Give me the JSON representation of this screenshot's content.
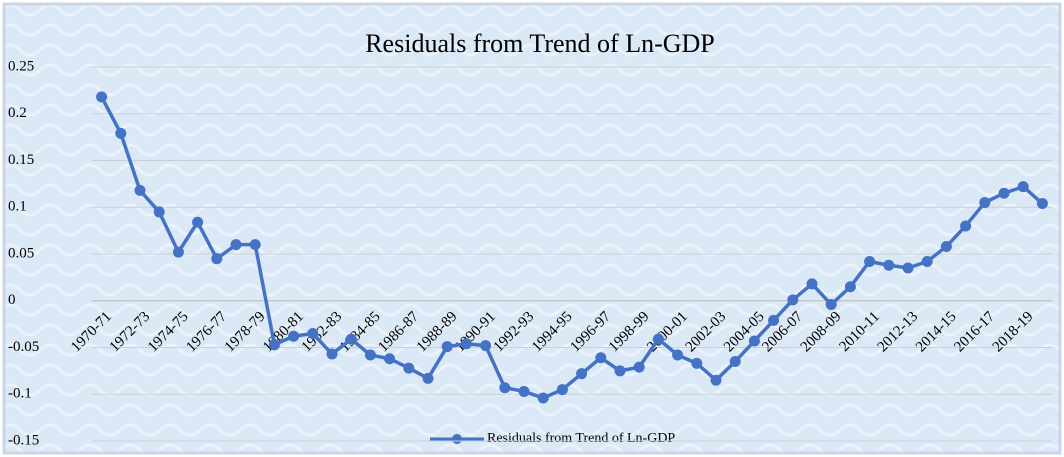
{
  "chart_data": {
    "type": "line",
    "title": "Residuals from Trend of Ln-GDP",
    "categories": [
      "1970-71",
      null,
      "1972-73",
      null,
      "1974-75",
      null,
      "1976-77",
      null,
      "1978-79",
      null,
      "1980-81",
      null,
      "1982-83",
      null,
      "1984-85",
      null,
      "1986-87",
      null,
      "1988-89",
      null,
      "1990-91",
      null,
      "1992-93",
      null,
      "1994-95",
      null,
      "1996-97",
      null,
      "1998-99",
      null,
      "2000-01",
      null,
      "2002-03",
      null,
      "2004-05",
      null,
      "2006-07",
      null,
      "2008-09",
      null,
      "2010-11",
      null,
      "2012-13",
      null,
      "2014-15",
      null,
      "2016-17",
      null,
      "2018-19",
      null
    ],
    "series": [
      {
        "name": "Residuals from Trend of Ln-GDP",
        "color": "#4472c4",
        "values": [
          0.218,
          0.179,
          0.118,
          0.095,
          0.052,
          0.084,
          0.045,
          0.06,
          0.06,
          -0.047,
          -0.038,
          -0.035,
          -0.057,
          -0.041,
          -0.058,
          -0.062,
          -0.072,
          -0.083,
          -0.049,
          -0.046,
          -0.048,
          -0.093,
          -0.097,
          -0.104,
          -0.095,
          -0.078,
          -0.061,
          -0.075,
          -0.071,
          -0.041,
          -0.058,
          -0.067,
          -0.085,
          -0.065,
          -0.043,
          -0.021,
          0.001,
          0.018,
          -0.004,
          0.015,
          0.042,
          0.038,
          0.035,
          0.042,
          0.058,
          0.08,
          0.105,
          0.115,
          0.122,
          0.104
        ]
      }
    ],
    "ylim": [
      -0.15,
      0.25
    ],
    "yticks": [
      -0.15,
      -0.1,
      -0.05,
      0,
      0.05,
      0.1,
      0.15,
      0.2,
      0.25
    ],
    "grid": true,
    "legend": "bottom"
  }
}
